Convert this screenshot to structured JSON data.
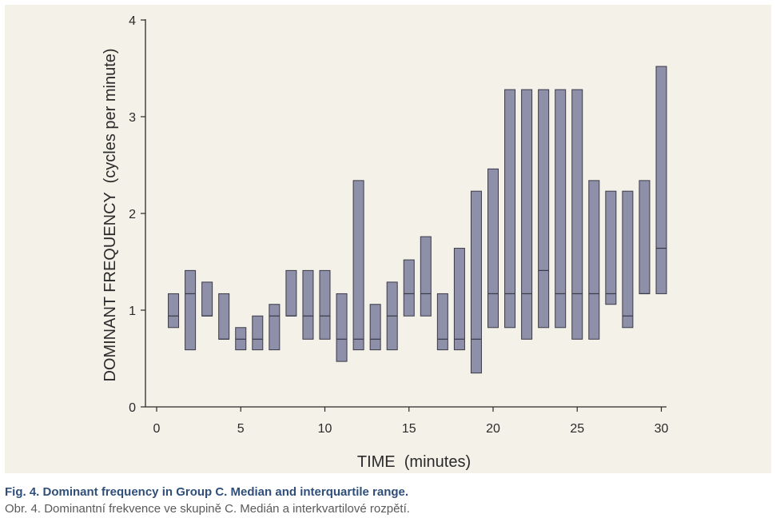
{
  "chart_data": {
    "type": "boxplot",
    "xlabel": "TIME  (minutes)",
    "ylabel": "DOMINANT FREQUENCY  (cycles per minute)",
    "xlim": [
      -0.5,
      31
    ],
    "ylim": [
      0,
      4
    ],
    "x_ticks": [
      0,
      5,
      10,
      15,
      20,
      25,
      30
    ],
    "y_ticks": [
      0,
      1,
      2,
      3,
      4
    ],
    "grid": false,
    "box_color": "#8e8fa8",
    "box_stroke": "#3a3a48",
    "boxes": [
      {
        "x": 1,
        "q1": 0.82,
        "median": 0.94,
        "q3": 1.17
      },
      {
        "x": 2,
        "q1": 0.59,
        "median": 1.17,
        "q3": 1.41
      },
      {
        "x": 3,
        "q1": 0.94,
        "median": 0.94,
        "q3": 1.29
      },
      {
        "x": 4,
        "q1": 0.7,
        "median": 0.7,
        "q3": 1.17
      },
      {
        "x": 5,
        "q1": 0.59,
        "median": 0.7,
        "q3": 0.82
      },
      {
        "x": 6,
        "q1": 0.59,
        "median": 0.7,
        "q3": 0.94
      },
      {
        "x": 7,
        "q1": 0.59,
        "median": 0.94,
        "q3": 1.06
      },
      {
        "x": 8,
        "q1": 0.94,
        "median": 0.94,
        "q3": 1.41
      },
      {
        "x": 9,
        "q1": 0.7,
        "median": 0.94,
        "q3": 1.41
      },
      {
        "x": 10,
        "q1": 0.7,
        "median": 0.94,
        "q3": 1.41
      },
      {
        "x": 11,
        "q1": 0.47,
        "median": 0.7,
        "q3": 1.17
      },
      {
        "x": 12,
        "q1": 0.59,
        "median": 0.7,
        "q3": 2.34
      },
      {
        "x": 13,
        "q1": 0.59,
        "median": 0.7,
        "q3": 1.06
      },
      {
        "x": 14,
        "q1": 0.59,
        "median": 0.94,
        "q3": 1.29
      },
      {
        "x": 15,
        "q1": 0.94,
        "median": 1.17,
        "q3": 1.52
      },
      {
        "x": 16,
        "q1": 0.94,
        "median": 1.17,
        "q3": 1.76
      },
      {
        "x": 17,
        "q1": 0.59,
        "median": 0.7,
        "q3": 1.17
      },
      {
        "x": 18,
        "q1": 0.59,
        "median": 0.7,
        "q3": 1.64
      },
      {
        "x": 19,
        "q1": 0.35,
        "median": 0.7,
        "q3": 2.23
      },
      {
        "x": 20,
        "q1": 0.82,
        "median": 1.17,
        "q3": 2.46
      },
      {
        "x": 21,
        "q1": 0.82,
        "median": 1.17,
        "q3": 3.28
      },
      {
        "x": 22,
        "q1": 0.7,
        "median": 1.17,
        "q3": 3.28
      },
      {
        "x": 23,
        "q1": 0.82,
        "median": 1.41,
        "q3": 3.28
      },
      {
        "x": 24,
        "q1": 0.82,
        "median": 1.17,
        "q3": 3.28
      },
      {
        "x": 25,
        "q1": 0.7,
        "median": 1.17,
        "q3": 3.28
      },
      {
        "x": 26,
        "q1": 0.7,
        "median": 1.17,
        "q3": 2.34
      },
      {
        "x": 27,
        "q1": 1.06,
        "median": 1.17,
        "q3": 2.23
      },
      {
        "x": 28,
        "q1": 0.82,
        "median": 0.94,
        "q3": 2.23
      },
      {
        "x": 29,
        "q1": 1.17,
        "median": 1.17,
        "q3": 2.34
      },
      {
        "x": 30,
        "q1": 1.17,
        "median": 1.64,
        "q3": 3.52
      }
    ]
  },
  "caption": {
    "english": "Fig. 4. Dominant frequency in Group C. Median and interquartile range.",
    "czech": "Obr. 4. Dominantní frekvence ve skupině C. Medián a interkvartilové rozpětí."
  }
}
